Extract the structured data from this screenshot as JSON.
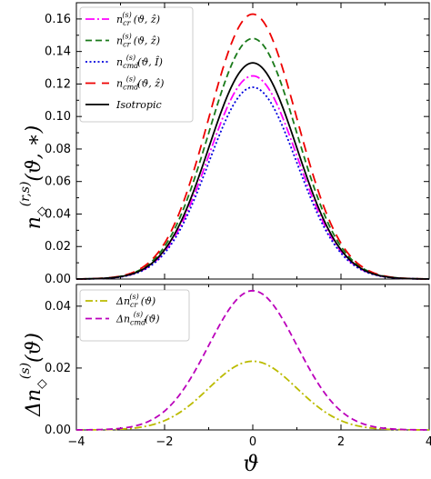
{
  "chart_data": [
    {
      "type": "line",
      "ylabel": "n◇^(r,s)(ϑ, ∗)",
      "xlim": [
        -4,
        4
      ],
      "ylim": [
        0,
        0.17
      ],
      "yticks": [
        0.0,
        0.02,
        0.04,
        0.06,
        0.08,
        0.1,
        0.12,
        0.14,
        0.16
      ],
      "ytick_labels": [
        "0.00",
        "0.02",
        "0.04",
        "0.06",
        "0.08",
        "0.10",
        "0.12",
        "0.14",
        "0.16"
      ],
      "legend_location": "top-left",
      "grid": false,
      "series": [
        {
          "name": "n_cr^(s)(ϑ, ẑ)",
          "legend_main": "n",
          "legend_sup": "(s)",
          "legend_sub": "cr",
          "legend_args": "(ϑ, ẑ)",
          "peak": 0.125,
          "color": "#ff00ff",
          "dash": "10,3,2,3"
        },
        {
          "name": "n_cr^(s)(ϑ, ẑ)",
          "legend_main": "n",
          "legend_sup": "(s)",
          "legend_sub": "cr",
          "legend_args": "(ϑ, ẑ)",
          "peak": 0.148,
          "color": "#1a7a1a",
          "dash": "7,4"
        },
        {
          "name": "n_cmd^(s)(ϑ, Î)",
          "legend_main": "n",
          "legend_sup": "(s)",
          "legend_sub": "cmd",
          "legend_args": "(ϑ, Î)",
          "peak": 0.118,
          "color": "#0000dd",
          "dash": "2,2.5"
        },
        {
          "name": "n_cmd^(s)(ϑ, ẑ)",
          "legend_main": "n",
          "legend_sup": "(s)",
          "legend_sub": "cmd",
          "legend_args": "(ϑ, ẑ)",
          "peak": 0.163,
          "color": "#ee0000",
          "dash": "11,7"
        },
        {
          "name": "Isotropic",
          "legend_main": "Isotropic",
          "legend_sup": "",
          "legend_sub": "",
          "legend_args": "",
          "peak": 0.133,
          "color": "#000000",
          "dash": ""
        }
      ]
    },
    {
      "type": "line",
      "xlabel": "ϑ",
      "ylabel": "Δn◇^(s)(ϑ)",
      "xlim": [
        -4,
        4
      ],
      "ylim": [
        0,
        0.047
      ],
      "xticks": [
        -4,
        -2,
        0,
        2,
        4
      ],
      "xtick_labels": [
        "−4",
        "−2",
        "0",
        "2",
        "4"
      ],
      "yticks": [
        0.0,
        0.02,
        0.04
      ],
      "ytick_labels": [
        "0.00",
        "0.02",
        "0.04"
      ],
      "legend_location": "top-left",
      "grid": false,
      "series": [
        {
          "name": "Δn_cr^(s)(ϑ)",
          "legend_main": "Δn",
          "legend_sup": "(s)",
          "legend_sub": "cr",
          "legend_args": "(ϑ)",
          "peak": 0.0222,
          "color": "#bbbb00",
          "dash": "8,3,2,3"
        },
        {
          "name": "Δn_cmd^(s)(ϑ)",
          "legend_main": "Δn",
          "legend_sup": "(s)",
          "legend_sub": "cmd",
          "legend_args": "(ϑ)",
          "peak": 0.045,
          "color": "#bb00bb",
          "dash": "7,4"
        }
      ]
    }
  ]
}
